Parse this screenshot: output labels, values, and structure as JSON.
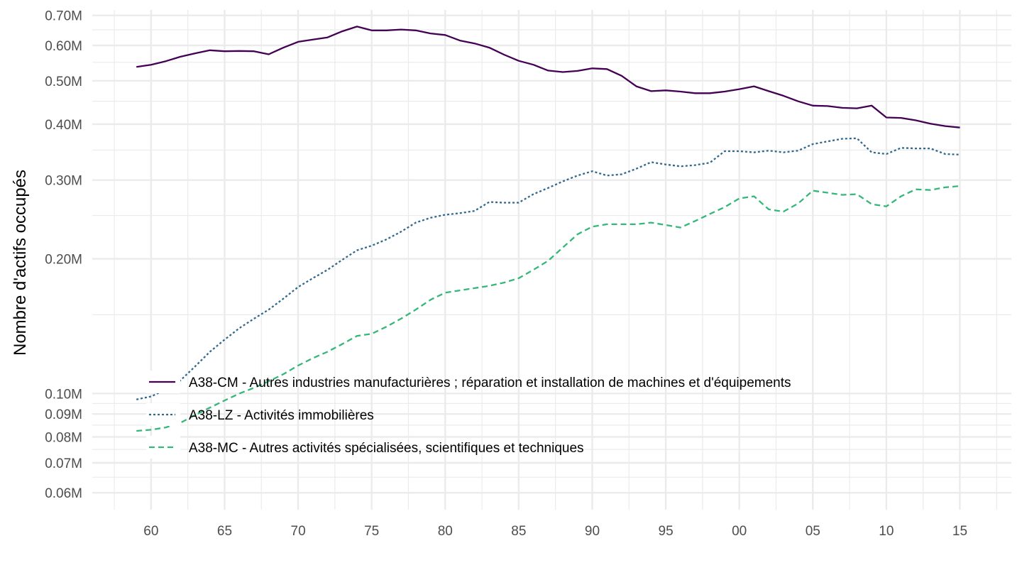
{
  "chart_data": {
    "type": "line",
    "title": "",
    "xlabel": "",
    "ylabel": "Nombre d'actifs occupés",
    "y_scale": "log10",
    "ylim": [
      55000,
      720000
    ],
    "xlim": [
      1956,
      2018.5
    ],
    "y_ticks": [
      {
        "value": 60000,
        "label": "0.06M"
      },
      {
        "value": 70000,
        "label": "0.07M"
      },
      {
        "value": 80000,
        "label": "0.08M"
      },
      {
        "value": 90000,
        "label": "0.09M"
      },
      {
        "value": 100000,
        "label": "0.10M"
      },
      {
        "value": 200000,
        "label": "0.20M"
      },
      {
        "value": 300000,
        "label": "0.30M"
      },
      {
        "value": 400000,
        "label": "0.40M"
      },
      {
        "value": 500000,
        "label": "0.50M"
      },
      {
        "value": 600000,
        "label": "0.60M"
      },
      {
        "value": 700000,
        "label": "0.70M"
      }
    ],
    "y_minor_grid": [
      65000,
      75000,
      85000,
      95000,
      150000,
      250000,
      350000,
      450000,
      550000,
      650000
    ],
    "x_ticks": [
      {
        "value": 1960,
        "label": "60"
      },
      {
        "value": 1965,
        "label": "65"
      },
      {
        "value": 1970,
        "label": "70"
      },
      {
        "value": 1975,
        "label": "75"
      },
      {
        "value": 1980,
        "label": "80"
      },
      {
        "value": 1985,
        "label": "85"
      },
      {
        "value": 1990,
        "label": "90"
      },
      {
        "value": 1995,
        "label": "95"
      },
      {
        "value": 2000,
        "label": "00"
      },
      {
        "value": 2005,
        "label": "05"
      },
      {
        "value": 2010,
        "label": "10"
      },
      {
        "value": 2015,
        "label": "15"
      }
    ],
    "x_minor_grid": [
      1957.5,
      1962.5,
      1967.5,
      1972.5,
      1977.5,
      1982.5,
      1987.5,
      1992.5,
      1997.5,
      2002.5,
      2007.5,
      2012.5,
      2017.5
    ],
    "x": [
      1959,
      1960,
      1961,
      1962,
      1963,
      1964,
      1965,
      1966,
      1967,
      1968,
      1969,
      1970,
      1971,
      1972,
      1973,
      1974,
      1975,
      1976,
      1977,
      1978,
      1979,
      1980,
      1981,
      1982,
      1983,
      1984,
      1985,
      1986,
      1987,
      1988,
      1989,
      1990,
      1991,
      1992,
      1993,
      1994,
      1995,
      1996,
      1997,
      1998,
      1999,
      2000,
      2001,
      2002,
      2003,
      2004,
      2005,
      2006,
      2007,
      2008,
      2009,
      2010,
      2011,
      2012,
      2013,
      2014,
      2015
    ],
    "series": [
      {
        "name": "A38-CM - Autres industries manufacturières ; réparation et installation de machines et d'équipements",
        "color": "#440154",
        "dash": "solid",
        "values": [
          537000,
          543000,
          553000,
          566000,
          576000,
          585000,
          582000,
          583000,
          582000,
          573000,
          593000,
          611000,
          618000,
          625000,
          645000,
          661000,
          648000,
          648000,
          651000,
          648000,
          638000,
          633000,
          615000,
          606000,
          593000,
          572000,
          554000,
          543000,
          527000,
          523000,
          526000,
          533000,
          531000,
          513000,
          486000,
          474000,
          476000,
          473000,
          469000,
          469000,
          473000,
          479000,
          486000,
          474000,
          463000,
          450000,
          440000,
          439000,
          435000,
          434000,
          440000,
          414000,
          413000,
          408000,
          401000,
          396000,
          393000
        ]
      },
      {
        "name": "A38-LZ - Activités immobilières",
        "color": "#31688e",
        "dash": "dotted",
        "values": [
          97000,
          98500,
          102000,
          107000,
          115000,
          124000,
          132000,
          140000,
          147000,
          154000,
          163000,
          173000,
          181000,
          189000,
          199000,
          209000,
          214000,
          221000,
          230000,
          241000,
          247000,
          251000,
          253000,
          256000,
          268000,
          267000,
          267000,
          279000,
          288000,
          298000,
          307000,
          314000,
          307000,
          309000,
          318000,
          329000,
          325000,
          322000,
          324000,
          328000,
          348000,
          348000,
          346000,
          349000,
          346000,
          349000,
          361000,
          366000,
          371000,
          372000,
          346000,
          343000,
          354000,
          353000,
          353000,
          343000,
          342000
        ]
      },
      {
        "name": "A38-MC - Autres activités spécialisées, scientifiques et techniques",
        "color": "#35b779",
        "dash": "dashed",
        "values": [
          82500,
          83000,
          84000,
          86000,
          89500,
          93000,
          96500,
          100000,
          103000,
          106500,
          110500,
          115500,
          120000,
          124000,
          129000,
          134500,
          136000,
          141000,
          147000,
          154000,
          162000,
          168000,
          170000,
          172000,
          174000,
          177000,
          181000,
          189000,
          198000,
          212000,
          227000,
          236000,
          239000,
          239000,
          239000,
          241000,
          238000,
          235000,
          243000,
          252000,
          261000,
          273000,
          276000,
          258000,
          255000,
          266000,
          284000,
          281000,
          278000,
          279000,
          265000,
          262000,
          276000,
          286000,
          285000,
          289000,
          291000
        ]
      }
    ],
    "legend": {
      "position": "inside-bottom-left",
      "entries": [
        "A38-CM - Autres industries manufacturières ; réparation et installation de machines et d'équipements",
        "A38-LZ - Activités immobilières",
        "A38-MC - Autres activités spécialisées, scientifiques et techniques"
      ]
    },
    "grid": true
  }
}
